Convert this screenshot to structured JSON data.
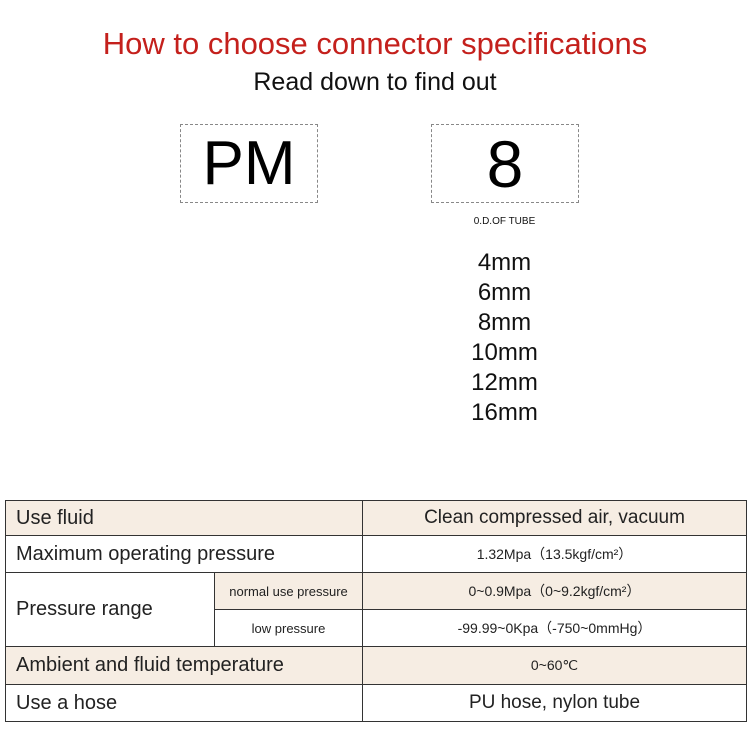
{
  "header": {
    "title": "How to choose connector specifications",
    "subtitle": "Read down to find out"
  },
  "code": {
    "series": "PM",
    "size": "8",
    "size_caption": "0.D.OF TUBE"
  },
  "tube_sizes": [
    "4mm",
    "6mm",
    "8mm",
    "10mm",
    "12mm",
    "16mm"
  ],
  "table": {
    "use_fluid": {
      "label": "Use fluid",
      "value": "Clean compressed air, vacuum"
    },
    "max_pressure": {
      "label": "Maximum operating pressure",
      "value": "1.32Mpa（13.5kgf/cm²）"
    },
    "pressure_range": {
      "label": "Pressure range",
      "normal": {
        "label": "normal use pressure",
        "value": "0~0.9Mpa（0~9.2kgf/cm²）"
      },
      "low": {
        "label": "low pressure",
        "value": "-99.99~0Kpa（-750~0mmHg）"
      }
    },
    "temperature": {
      "label": "Ambient and fluid temperature",
      "value": "0~60℃"
    },
    "hose": {
      "label": "Use a hose",
      "value": "PU hose, nylon tube"
    }
  },
  "colors": {
    "title": "#c4201c",
    "row_shade": "#f6ede3"
  }
}
